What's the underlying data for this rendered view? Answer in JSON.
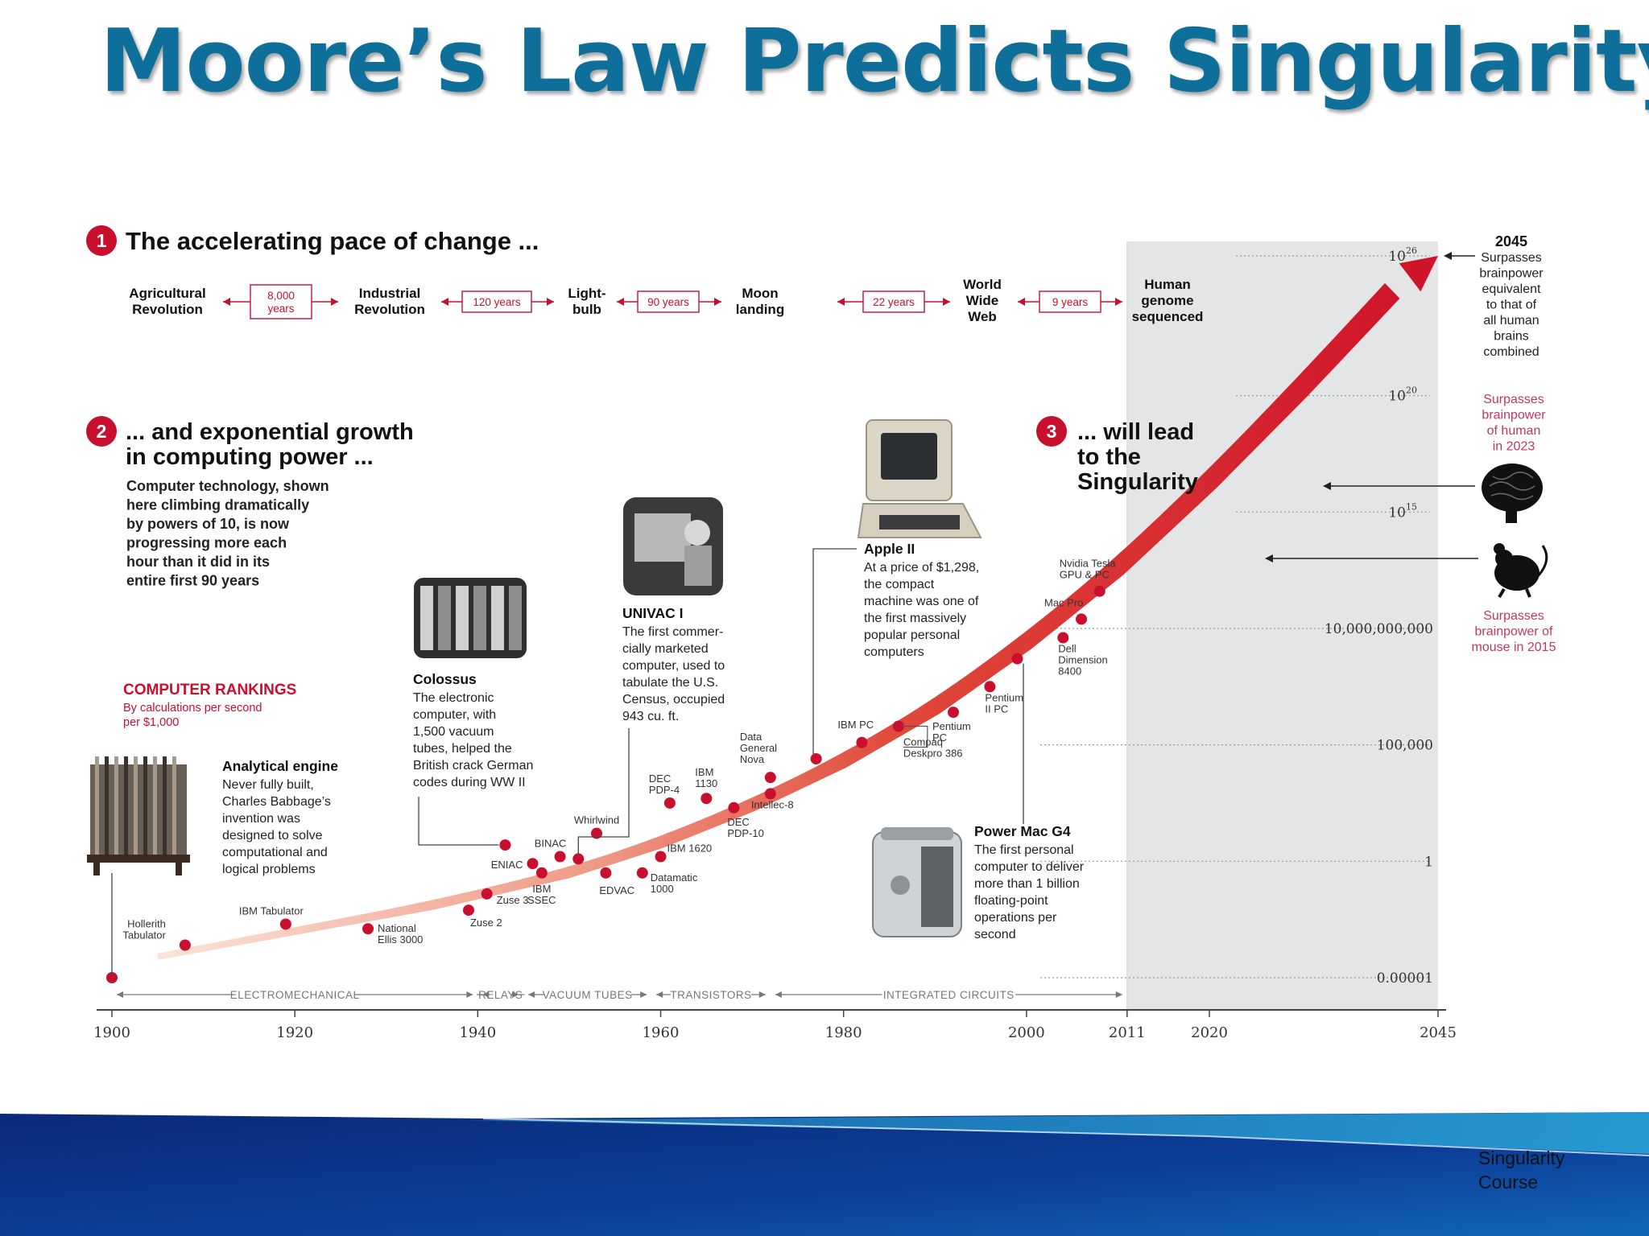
{
  "slide": {
    "title": "Moore’s Law Predicts Singularity",
    "footer": "Singularity Course"
  },
  "colors": {
    "accent": "#c8102e",
    "title": "#0e6f9b",
    "footer_dark": "#0b2c7a",
    "footer_light": "#1e8fc4",
    "future_region": "#e3e5e6"
  },
  "sections": {
    "s1": {
      "num": "1",
      "heading": "The accelerating pace of change ..."
    },
    "s2": {
      "num": "2",
      "heading_lines": [
        "... and exponential growth",
        "in computing power ..."
      ],
      "body_lines": [
        "Computer technology, shown",
        "here climbing dramatically",
        "by powers of 10, is now",
        "progressing more each",
        "hour than it did in its",
        "entire first 90 years"
      ]
    },
    "s3": {
      "num": "3",
      "heading_lines": [
        "... will lead",
        "to the",
        "Singularity"
      ]
    }
  },
  "timeline": {
    "events": [
      {
        "lines": [
          "Agricultural",
          "Revolution"
        ]
      },
      {
        "lines": [
          "Industrial",
          "Revolution"
        ]
      },
      {
        "lines": [
          "Light-",
          "bulb"
        ]
      },
      {
        "lines": [
          "Moon",
          "landing"
        ]
      },
      {
        "lines": [
          "World",
          "Wide",
          "Web"
        ]
      },
      {
        "lines": [
          "Human",
          "genome",
          "sequenced"
        ]
      }
    ],
    "gaps": [
      {
        "lines": [
          "8,000",
          "years"
        ]
      },
      {
        "lines": [
          "120 years"
        ]
      },
      {
        "lines": [
          "90 years"
        ]
      },
      {
        "lines": [
          "22 years"
        ]
      },
      {
        "lines": [
          "9 years"
        ]
      }
    ]
  },
  "rankings": {
    "heading": "COMPUTER RANKINGS",
    "sub_lines": [
      "By calculations per second",
      "per $1,000"
    ]
  },
  "callouts": [
    {
      "id": "analytical-engine",
      "title": "Analytical engine",
      "lines": [
        "Never fully built,",
        "Charles Babbage’s",
        "invention was",
        "designed to solve",
        "computational and",
        "logical problems"
      ]
    },
    {
      "id": "colossus",
      "title": "Colossus",
      "lines": [
        "The electronic",
        "computer, with",
        "1,500 vacuum",
        "tubes, helped the",
        "British crack German",
        "codes during WW II"
      ]
    },
    {
      "id": "univac",
      "title": "UNIVAC I",
      "lines": [
        "The first commer-",
        "cially marketed",
        "computer, used to",
        "tabulate the U.S.",
        "Census, occupied",
        "943 cu. ft."
      ]
    },
    {
      "id": "apple-ii",
      "title": "Apple II",
      "lines": [
        "At a price of $1,298,",
        "the compact",
        "machine was one of",
        "the first massively",
        "popular personal",
        "computers"
      ]
    },
    {
      "id": "power-mac",
      "title": "Power Mac G4",
      "lines": [
        "The first personal",
        "computer to deliver",
        "more than 1 billion",
        "floating-point",
        "operations per",
        "second"
      ]
    }
  ],
  "annotations": {
    "y2045": {
      "year": "2045",
      "lines": [
        "Surpasses",
        "brainpower",
        "equivalent",
        "to that of",
        "all human",
        "brains",
        "combined"
      ]
    },
    "human": {
      "lines": [
        "Surpasses",
        "brainpower",
        "of human",
        "in 2023"
      ]
    },
    "mouse": {
      "lines": [
        "Surpasses",
        "brainpower of",
        "mouse in 2015"
      ]
    }
  },
  "chart_data": {
    "type": "scatter",
    "title": "",
    "xlabel": "",
    "ylabel": "",
    "x_ticks": [
      "1900",
      "1920",
      "1940",
      "1960",
      "1980",
      "2000",
      "2011",
      "2020",
      "2045"
    ],
    "y_ticks": [
      {
        "log10": -5,
        "base": "0.00001"
      },
      {
        "log10": 0,
        "base": "1"
      },
      {
        "log10": 5,
        "base": "100,000"
      },
      {
        "log10": 10,
        "base": "10,000,000,000"
      },
      {
        "log10": 15,
        "base": "10",
        "exp": "15"
      },
      {
        "log10": 20,
        "base": "10",
        "exp": "20"
      },
      {
        "log10": 26,
        "base": "10",
        "exp": "26"
      }
    ],
    "xlim": [
      1900,
      2045
    ],
    "ylim_log10": [
      -5.5,
      26
    ],
    "future_region_from": 2011,
    "eras": [
      {
        "label": "ELECTROMECHANICAL",
        "from": 1900,
        "to": 1940
      },
      {
        "label": "RELAYS",
        "from": 1940,
        "to": 1945
      },
      {
        "label": "VACUUM TUBES",
        "from": 1945,
        "to": 1959
      },
      {
        "label": "TRANSISTORS",
        "from": 1959,
        "to": 1972
      },
      {
        "label": "INTEGRATED CIRCUITS",
        "from": 1972,
        "to": 2011
      }
    ],
    "points": [
      {
        "x": 1900,
        "y": -5.0,
        "label": ""
      },
      {
        "x": 1908,
        "y": -3.6,
        "label": "Hollerith\nTabulator"
      },
      {
        "x": 1919,
        "y": -2.7,
        "label": "IBM Tabulator"
      },
      {
        "x": 1928,
        "y": -2.9,
        "label": "National\nEllis 3000"
      },
      {
        "x": 1939,
        "y": -2.1,
        "label": "Zuse 2"
      },
      {
        "x": 1941,
        "y": -1.4,
        "label": "Zuse 3"
      },
      {
        "x": 1943,
        "y": 0.7,
        "label": "Colossus"
      },
      {
        "x": 1946,
        "y": -0.1,
        "label": "ENIAC"
      },
      {
        "x": 1947,
        "y": -0.5,
        "label": "IBM\nSSEC"
      },
      {
        "x": 1949,
        "y": 0.2,
        "label": "BINAC"
      },
      {
        "x": 1951,
        "y": 0.1,
        "label": "UNIVAC I"
      },
      {
        "x": 1953,
        "y": 1.2,
        "label": "Whirlwind"
      },
      {
        "x": 1954,
        "y": -0.5,
        "label": "EDVAC"
      },
      {
        "x": 1958,
        "y": -0.5,
        "label": "Datamatic\n1000"
      },
      {
        "x": 1960,
        "y": 0.2,
        "label": "IBM 1620"
      },
      {
        "x": 1961,
        "y": 2.5,
        "label": "DEC\nPDP-4"
      },
      {
        "x": 1965,
        "y": 2.7,
        "label": "IBM\n1130"
      },
      {
        "x": 1968,
        "y": 2.3,
        "label": "DEC\nPDP-10"
      },
      {
        "x": 1972,
        "y": 2.9,
        "label": "Intellec-8"
      },
      {
        "x": 1972,
        "y": 3.6,
        "label": "Data\nGeneral\nNova"
      },
      {
        "x": 1977,
        "y": 4.4,
        "label": "Apple II"
      },
      {
        "x": 1982,
        "y": 5.1,
        "label": "IBM PC"
      },
      {
        "x": 1986,
        "y": 5.8,
        "label": "Compaq\nDeskpro 386"
      },
      {
        "x": 1992,
        "y": 6.4,
        "label": "Pentium\nPC"
      },
      {
        "x": 1996,
        "y": 7.5,
        "label": "Pentium\nII PC"
      },
      {
        "x": 1999,
        "y": 8.7,
        "label": "Power Mac G4"
      },
      {
        "x": 2004,
        "y": 9.6,
        "label": "Dell\nDimension\n8400"
      },
      {
        "x": 2006,
        "y": 10.4,
        "label": "Mac Pro"
      },
      {
        "x": 2008,
        "y": 11.6,
        "label": "Nvidia Tesla\nGPU & PC"
      }
    ],
    "trend": [
      {
        "x": 1905,
        "y": -4.1
      },
      {
        "x": 1920,
        "y": -3.0
      },
      {
        "x": 1935,
        "y": -1.9
      },
      {
        "x": 1950,
        "y": -0.5
      },
      {
        "x": 1960,
        "y": 0.8
      },
      {
        "x": 1970,
        "y": 2.4
      },
      {
        "x": 1980,
        "y": 4.3
      },
      {
        "x": 1990,
        "y": 6.6
      },
      {
        "x": 2000,
        "y": 9.4
      },
      {
        "x": 2010,
        "y": 12.6
      },
      {
        "x": 2020,
        "y": 16.3
      },
      {
        "x": 2030,
        "y": 20.3
      },
      {
        "x": 2040,
        "y": 24.5
      },
      {
        "x": 2045,
        "y": 26.0
      }
    ],
    "milestones": [
      {
        "x": 2015,
        "y": 12.0,
        "label": "mouse"
      },
      {
        "x": 2023,
        "y": 18.0,
        "label": "human"
      },
      {
        "x": 2045,
        "y": 26.0,
        "label": "all human brains"
      }
    ]
  }
}
